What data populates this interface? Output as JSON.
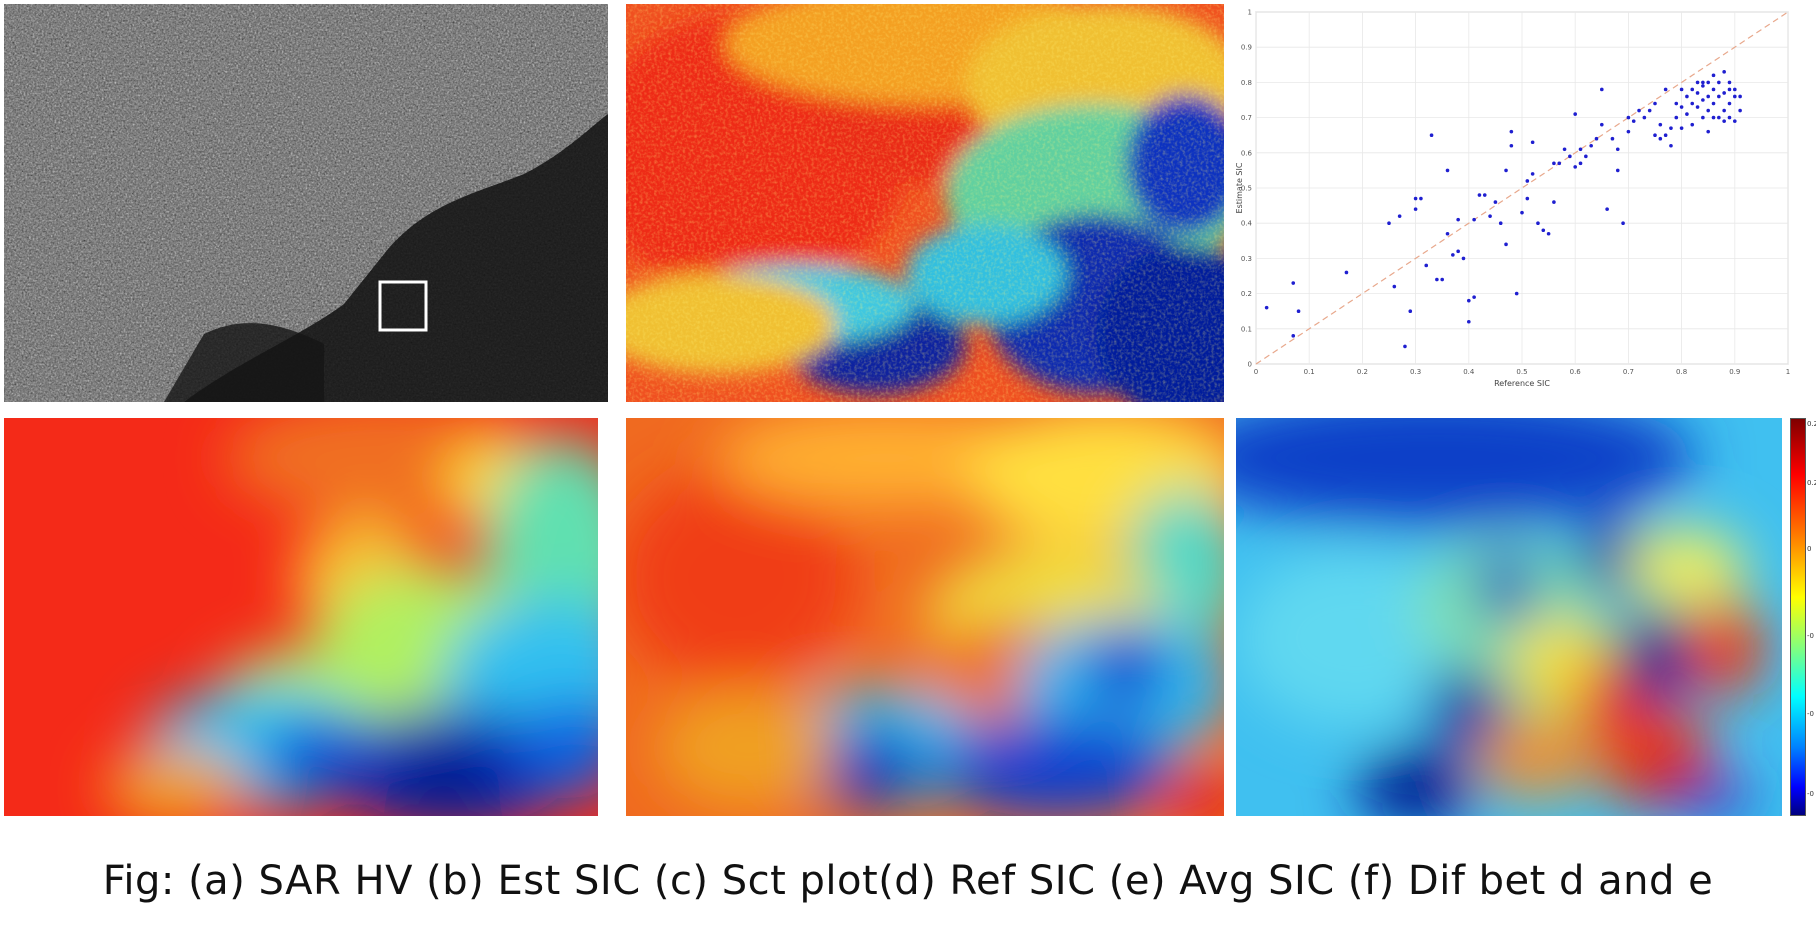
{
  "caption": "Fig: (a) SAR HV (b) Est SIC (c) Sct plot(d) Ref SIC (e) Avg SIC (f) Dif bet d and e",
  "panels": {
    "a": {
      "kind": "sar-hv-grayscale-image"
    },
    "b": {
      "kind": "estimated-sic-heatmap",
      "colormap": "jet"
    },
    "d": {
      "kind": "reference-sic-smooth-map",
      "colormap": "jet"
    },
    "e": {
      "kind": "average-sic-smooth-map",
      "colormap": "jet"
    },
    "f": {
      "kind": "difference-map",
      "colormap": "jet"
    }
  },
  "colorbar": {
    "ticks": [
      "0.2",
      "0.2",
      "0",
      "-0",
      "-0",
      "-0"
    ]
  },
  "chart_data": {
    "type": "scatter",
    "xlabel": "Reference SIC",
    "ylabel": "Estimate SIC",
    "xlim": [
      0,
      1
    ],
    "ylim": [
      0,
      1
    ],
    "xticks": [
      "0",
      "0.1",
      "0.2",
      "0.3",
      "0.4",
      "0.5",
      "0.6",
      "0.7",
      "0.8",
      "0.9",
      "1"
    ],
    "yticks": [
      "0",
      "0.1",
      "0.2",
      "0.3",
      "0.4",
      "0.5",
      "0.6",
      "0.7",
      "0.8",
      "0.9",
      "1"
    ],
    "grid": true,
    "reference_line": "y = x",
    "marker_color": "#1f1fd0",
    "line_color": "#e8a88c",
    "points": [
      [
        0.02,
        0.16
      ],
      [
        0.07,
        0.08
      ],
      [
        0.07,
        0.23
      ],
      [
        0.08,
        0.15
      ],
      [
        0.17,
        0.26
      ],
      [
        0.25,
        0.4
      ],
      [
        0.26,
        0.22
      ],
      [
        0.27,
        0.42
      ],
      [
        0.28,
        0.05
      ],
      [
        0.29,
        0.15
      ],
      [
        0.3,
        0.44
      ],
      [
        0.3,
        0.47
      ],
      [
        0.31,
        0.47
      ],
      [
        0.32,
        0.28
      ],
      [
        0.33,
        0.65
      ],
      [
        0.34,
        0.24
      ],
      [
        0.35,
        0.24
      ],
      [
        0.36,
        0.37
      ],
      [
        0.36,
        0.55
      ],
      [
        0.37,
        0.31
      ],
      [
        0.38,
        0.32
      ],
      [
        0.38,
        0.41
      ],
      [
        0.39,
        0.3
      ],
      [
        0.4,
        0.12
      ],
      [
        0.4,
        0.18
      ],
      [
        0.41,
        0.19
      ],
      [
        0.41,
        0.41
      ],
      [
        0.42,
        0.48
      ],
      [
        0.43,
        0.48
      ],
      [
        0.44,
        0.42
      ],
      [
        0.45,
        0.46
      ],
      [
        0.46,
        0.4
      ],
      [
        0.47,
        0.34
      ],
      [
        0.47,
        0.55
      ],
      [
        0.48,
        0.62
      ],
      [
        0.48,
        0.66
      ],
      [
        0.49,
        0.2
      ],
      [
        0.5,
        0.43
      ],
      [
        0.51,
        0.47
      ],
      [
        0.51,
        0.52
      ],
      [
        0.52,
        0.63
      ],
      [
        0.52,
        0.54
      ],
      [
        0.53,
        0.4
      ],
      [
        0.54,
        0.38
      ],
      [
        0.55,
        0.37
      ],
      [
        0.56,
        0.46
      ],
      [
        0.56,
        0.57
      ],
      [
        0.57,
        0.57
      ],
      [
        0.58,
        0.61
      ],
      [
        0.59,
        0.59
      ],
      [
        0.6,
        0.56
      ],
      [
        0.6,
        0.71
      ],
      [
        0.61,
        0.61
      ],
      [
        0.61,
        0.57
      ],
      [
        0.62,
        0.59
      ],
      [
        0.63,
        0.62
      ],
      [
        0.64,
        0.64
      ],
      [
        0.65,
        0.68
      ],
      [
        0.65,
        0.78
      ],
      [
        0.66,
        0.44
      ],
      [
        0.67,
        0.64
      ],
      [
        0.68,
        0.55
      ],
      [
        0.68,
        0.61
      ],
      [
        0.69,
        0.4
      ],
      [
        0.7,
        0.66
      ],
      [
        0.7,
        0.7
      ],
      [
        0.71,
        0.69
      ],
      [
        0.72,
        0.72
      ],
      [
        0.73,
        0.7
      ],
      [
        0.74,
        0.72
      ],
      [
        0.75,
        0.65
      ],
      [
        0.75,
        0.74
      ],
      [
        0.76,
        0.68
      ],
      [
        0.76,
        0.64
      ],
      [
        0.77,
        0.78
      ],
      [
        0.77,
        0.65
      ],
      [
        0.78,
        0.62
      ],
      [
        0.78,
        0.67
      ],
      [
        0.79,
        0.7
      ],
      [
        0.79,
        0.74
      ],
      [
        0.8,
        0.67
      ],
      [
        0.8,
        0.73
      ],
      [
        0.81,
        0.71
      ],
      [
        0.81,
        0.76
      ],
      [
        0.82,
        0.68
      ],
      [
        0.82,
        0.78
      ],
      [
        0.83,
        0.8
      ],
      [
        0.83,
        0.73
      ],
      [
        0.84,
        0.79
      ],
      [
        0.84,
        0.7
      ],
      [
        0.84,
        0.75
      ],
      [
        0.85,
        0.8
      ],
      [
        0.85,
        0.72
      ],
      [
        0.85,
        0.66
      ],
      [
        0.86,
        0.78
      ],
      [
        0.86,
        0.74
      ],
      [
        0.86,
        0.82
      ],
      [
        0.87,
        0.8
      ],
      [
        0.87,
        0.7
      ],
      [
        0.87,
        0.76
      ],
      [
        0.88,
        0.77
      ],
      [
        0.88,
        0.72
      ],
      [
        0.88,
        0.83
      ],
      [
        0.88,
        0.69
      ],
      [
        0.89,
        0.8
      ],
      [
        0.89,
        0.74
      ],
      [
        0.89,
        0.7
      ],
      [
        0.9,
        0.76
      ],
      [
        0.9,
        0.78
      ],
      [
        0.9,
        0.69
      ],
      [
        0.91,
        0.76
      ],
      [
        0.91,
        0.72
      ],
      [
        0.85,
        0.76
      ],
      [
        0.86,
        0.7
      ],
      [
        0.89,
        0.78
      ],
      [
        0.84,
        0.8
      ],
      [
        0.83,
        0.77
      ],
      [
        0.82,
        0.74
      ],
      [
        0.8,
        0.78
      ]
    ]
  }
}
